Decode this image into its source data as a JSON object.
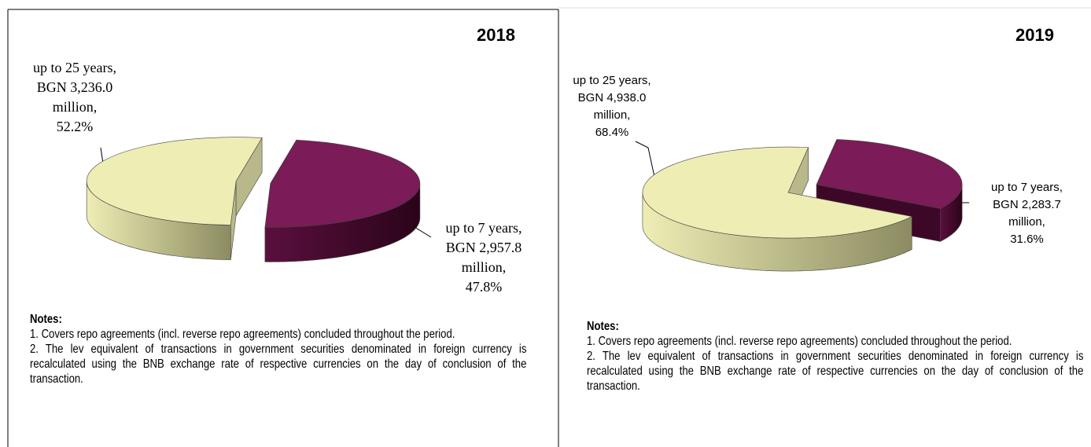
{
  "chart_data": [
    {
      "type": "pie",
      "title": "2018",
      "categories": [
        "up to 25 years,",
        "up to 7 years,"
      ],
      "values": [
        52.2,
        47.8
      ],
      "value_labels": [
        "52.2%",
        "47.8%"
      ],
      "amount_labels": [
        "BGN 3,236.0 million,",
        "BGN 2,957.8 million,"
      ],
      "colors": [
        "#eeedb4",
        "#7b1b57"
      ],
      "notes": {
        "title": "Notes:",
        "items": [
          "1. Covers repo agreements (incl. reverse repo agreements) concluded throughout the period.",
          "2. The lev equivalent of transactions in government securities denominated in foreign currency is recalculated using the BNB exchange rate of respective currencies on the day of conclusion of the transaction."
        ]
      }
    },
    {
      "type": "pie",
      "title": "2019",
      "categories": [
        "up to 25 years,",
        "up to 7 years,"
      ],
      "values": [
        68.4,
        31.6
      ],
      "value_labels": [
        "68.4%",
        "31.6%"
      ],
      "amount_labels": [
        "BGN 4,938.0 million,",
        "BGN 2,283.7 million,"
      ],
      "colors": [
        "#eeedb4",
        "#7b1b57"
      ],
      "notes": {
        "title": "Notes:",
        "items": [
          "1. Covers repo agreements (incl. reverse repo agreements) concluded throughout the period.",
          "2. The lev equivalent of transactions in government securities denominated in foreign currency is recalculated using the BNB exchange rate of respective currencies on the day of conclusion of the transaction."
        ]
      }
    }
  ]
}
